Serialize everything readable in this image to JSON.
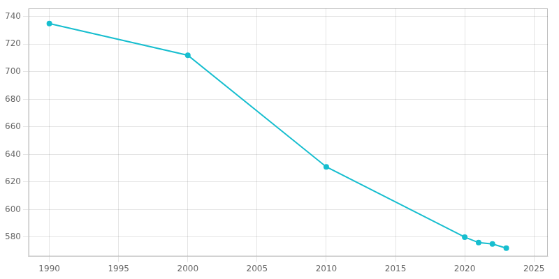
{
  "chart_data": {
    "type": "line",
    "x": [
      1990,
      2000,
      2010,
      2020,
      2021,
      2022,
      2023
    ],
    "values": [
      735,
      712,
      631,
      580,
      576,
      575,
      572
    ],
    "color": "#17BECF",
    "marker": "circle",
    "xlim": [
      1988.5,
      2026
    ],
    "ylim": [
      566,
      746
    ],
    "xticks": [
      1990,
      1995,
      2000,
      2005,
      2010,
      2015,
      2020,
      2025
    ],
    "yticks": [
      580,
      600,
      620,
      640,
      660,
      680,
      700,
      720,
      740
    ],
    "grid": true
  }
}
